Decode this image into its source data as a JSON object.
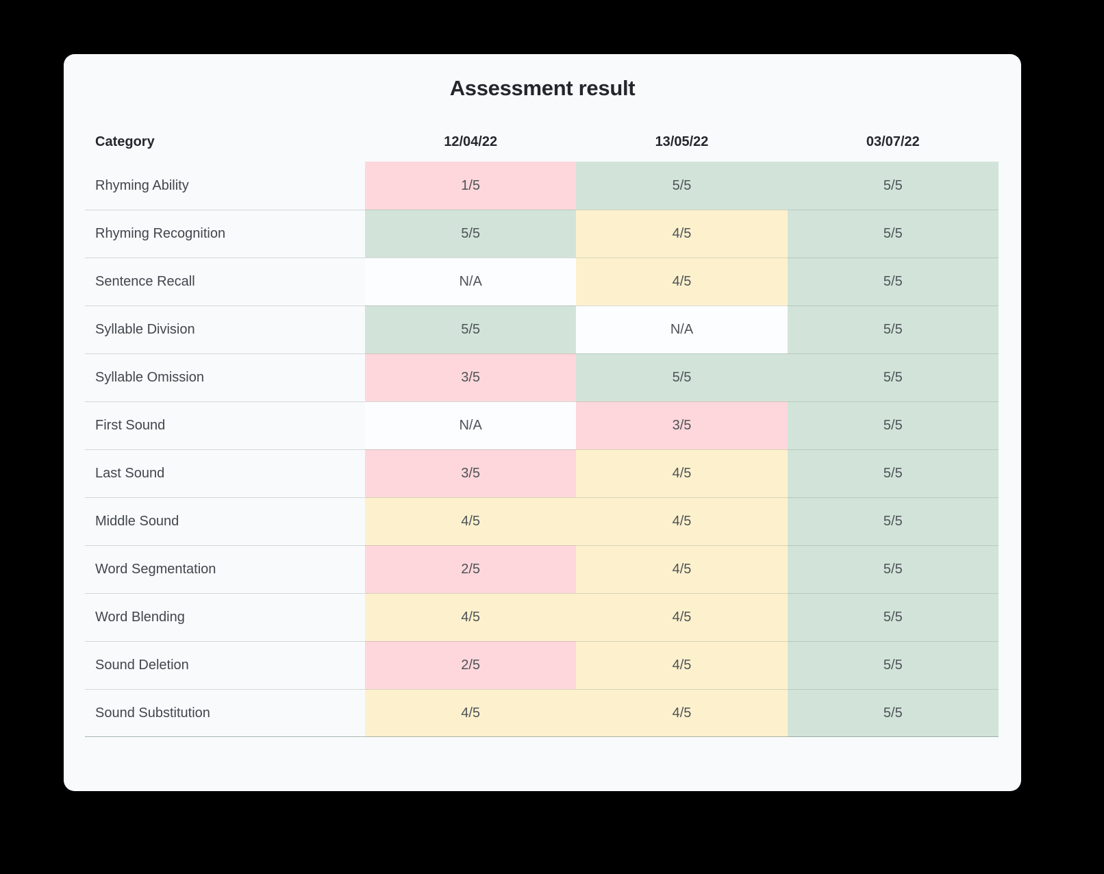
{
  "title": "Assessment result",
  "table": {
    "columns": [
      "Category",
      "12/04/22",
      "13/05/22",
      "03/07/22"
    ],
    "rows": [
      {
        "category": "Rhyming Ability",
        "scores": [
          {
            "value": "1/5",
            "level": "low"
          },
          {
            "value": "5/5",
            "level": "high"
          },
          {
            "value": "5/5",
            "level": "high"
          }
        ]
      },
      {
        "category": "Rhyming Recognition",
        "scores": [
          {
            "value": "5/5",
            "level": "high"
          },
          {
            "value": "4/5",
            "level": "mid"
          },
          {
            "value": "5/5",
            "level": "high"
          }
        ]
      },
      {
        "category": "Sentence Recall",
        "scores": [
          {
            "value": "N/A",
            "level": "none"
          },
          {
            "value": "4/5",
            "level": "mid"
          },
          {
            "value": "5/5",
            "level": "high"
          }
        ]
      },
      {
        "category": "Syllable Division",
        "scores": [
          {
            "value": "5/5",
            "level": "high"
          },
          {
            "value": "N/A",
            "level": "none"
          },
          {
            "value": "5/5",
            "level": "high"
          }
        ]
      },
      {
        "category": "Syllable Omission",
        "scores": [
          {
            "value": "3/5",
            "level": "low"
          },
          {
            "value": "5/5",
            "level": "high"
          },
          {
            "value": "5/5",
            "level": "high"
          }
        ]
      },
      {
        "category": "First Sound",
        "scores": [
          {
            "value": "N/A",
            "level": "none"
          },
          {
            "value": "3/5",
            "level": "low"
          },
          {
            "value": "5/5",
            "level": "high"
          }
        ]
      },
      {
        "category": "Last Sound",
        "scores": [
          {
            "value": "3/5",
            "level": "low"
          },
          {
            "value": "4/5",
            "level": "mid"
          },
          {
            "value": "5/5",
            "level": "high"
          }
        ]
      },
      {
        "category": "Middle Sound",
        "scores": [
          {
            "value": "4/5",
            "level": "mid"
          },
          {
            "value": "4/5",
            "level": "mid"
          },
          {
            "value": "5/5",
            "level": "high"
          }
        ]
      },
      {
        "category": "Word Segmentation",
        "scores": [
          {
            "value": "2/5",
            "level": "low"
          },
          {
            "value": "4/5",
            "level": "mid"
          },
          {
            "value": "5/5",
            "level": "high"
          }
        ]
      },
      {
        "category": "Word Blending",
        "scores": [
          {
            "value": "4/5",
            "level": "mid"
          },
          {
            "value": "4/5",
            "level": "mid"
          },
          {
            "value": "5/5",
            "level": "high"
          }
        ]
      },
      {
        "category": "Sound Deletion",
        "scores": [
          {
            "value": "2/5",
            "level": "low"
          },
          {
            "value": "4/5",
            "level": "mid"
          },
          {
            "value": "5/5",
            "level": "high"
          }
        ]
      },
      {
        "category": "Sound Substitution",
        "scores": [
          {
            "value": "4/5",
            "level": "mid"
          },
          {
            "value": "4/5",
            "level": "mid"
          },
          {
            "value": "5/5",
            "level": "high"
          }
        ]
      }
    ]
  },
  "colors": {
    "low": "#fdd7db",
    "mid": "#fdf1cd",
    "high": "#d2e4d9",
    "none": "#fcfdfe",
    "card_background": "#f8fafb",
    "page_background": "#000000"
  }
}
